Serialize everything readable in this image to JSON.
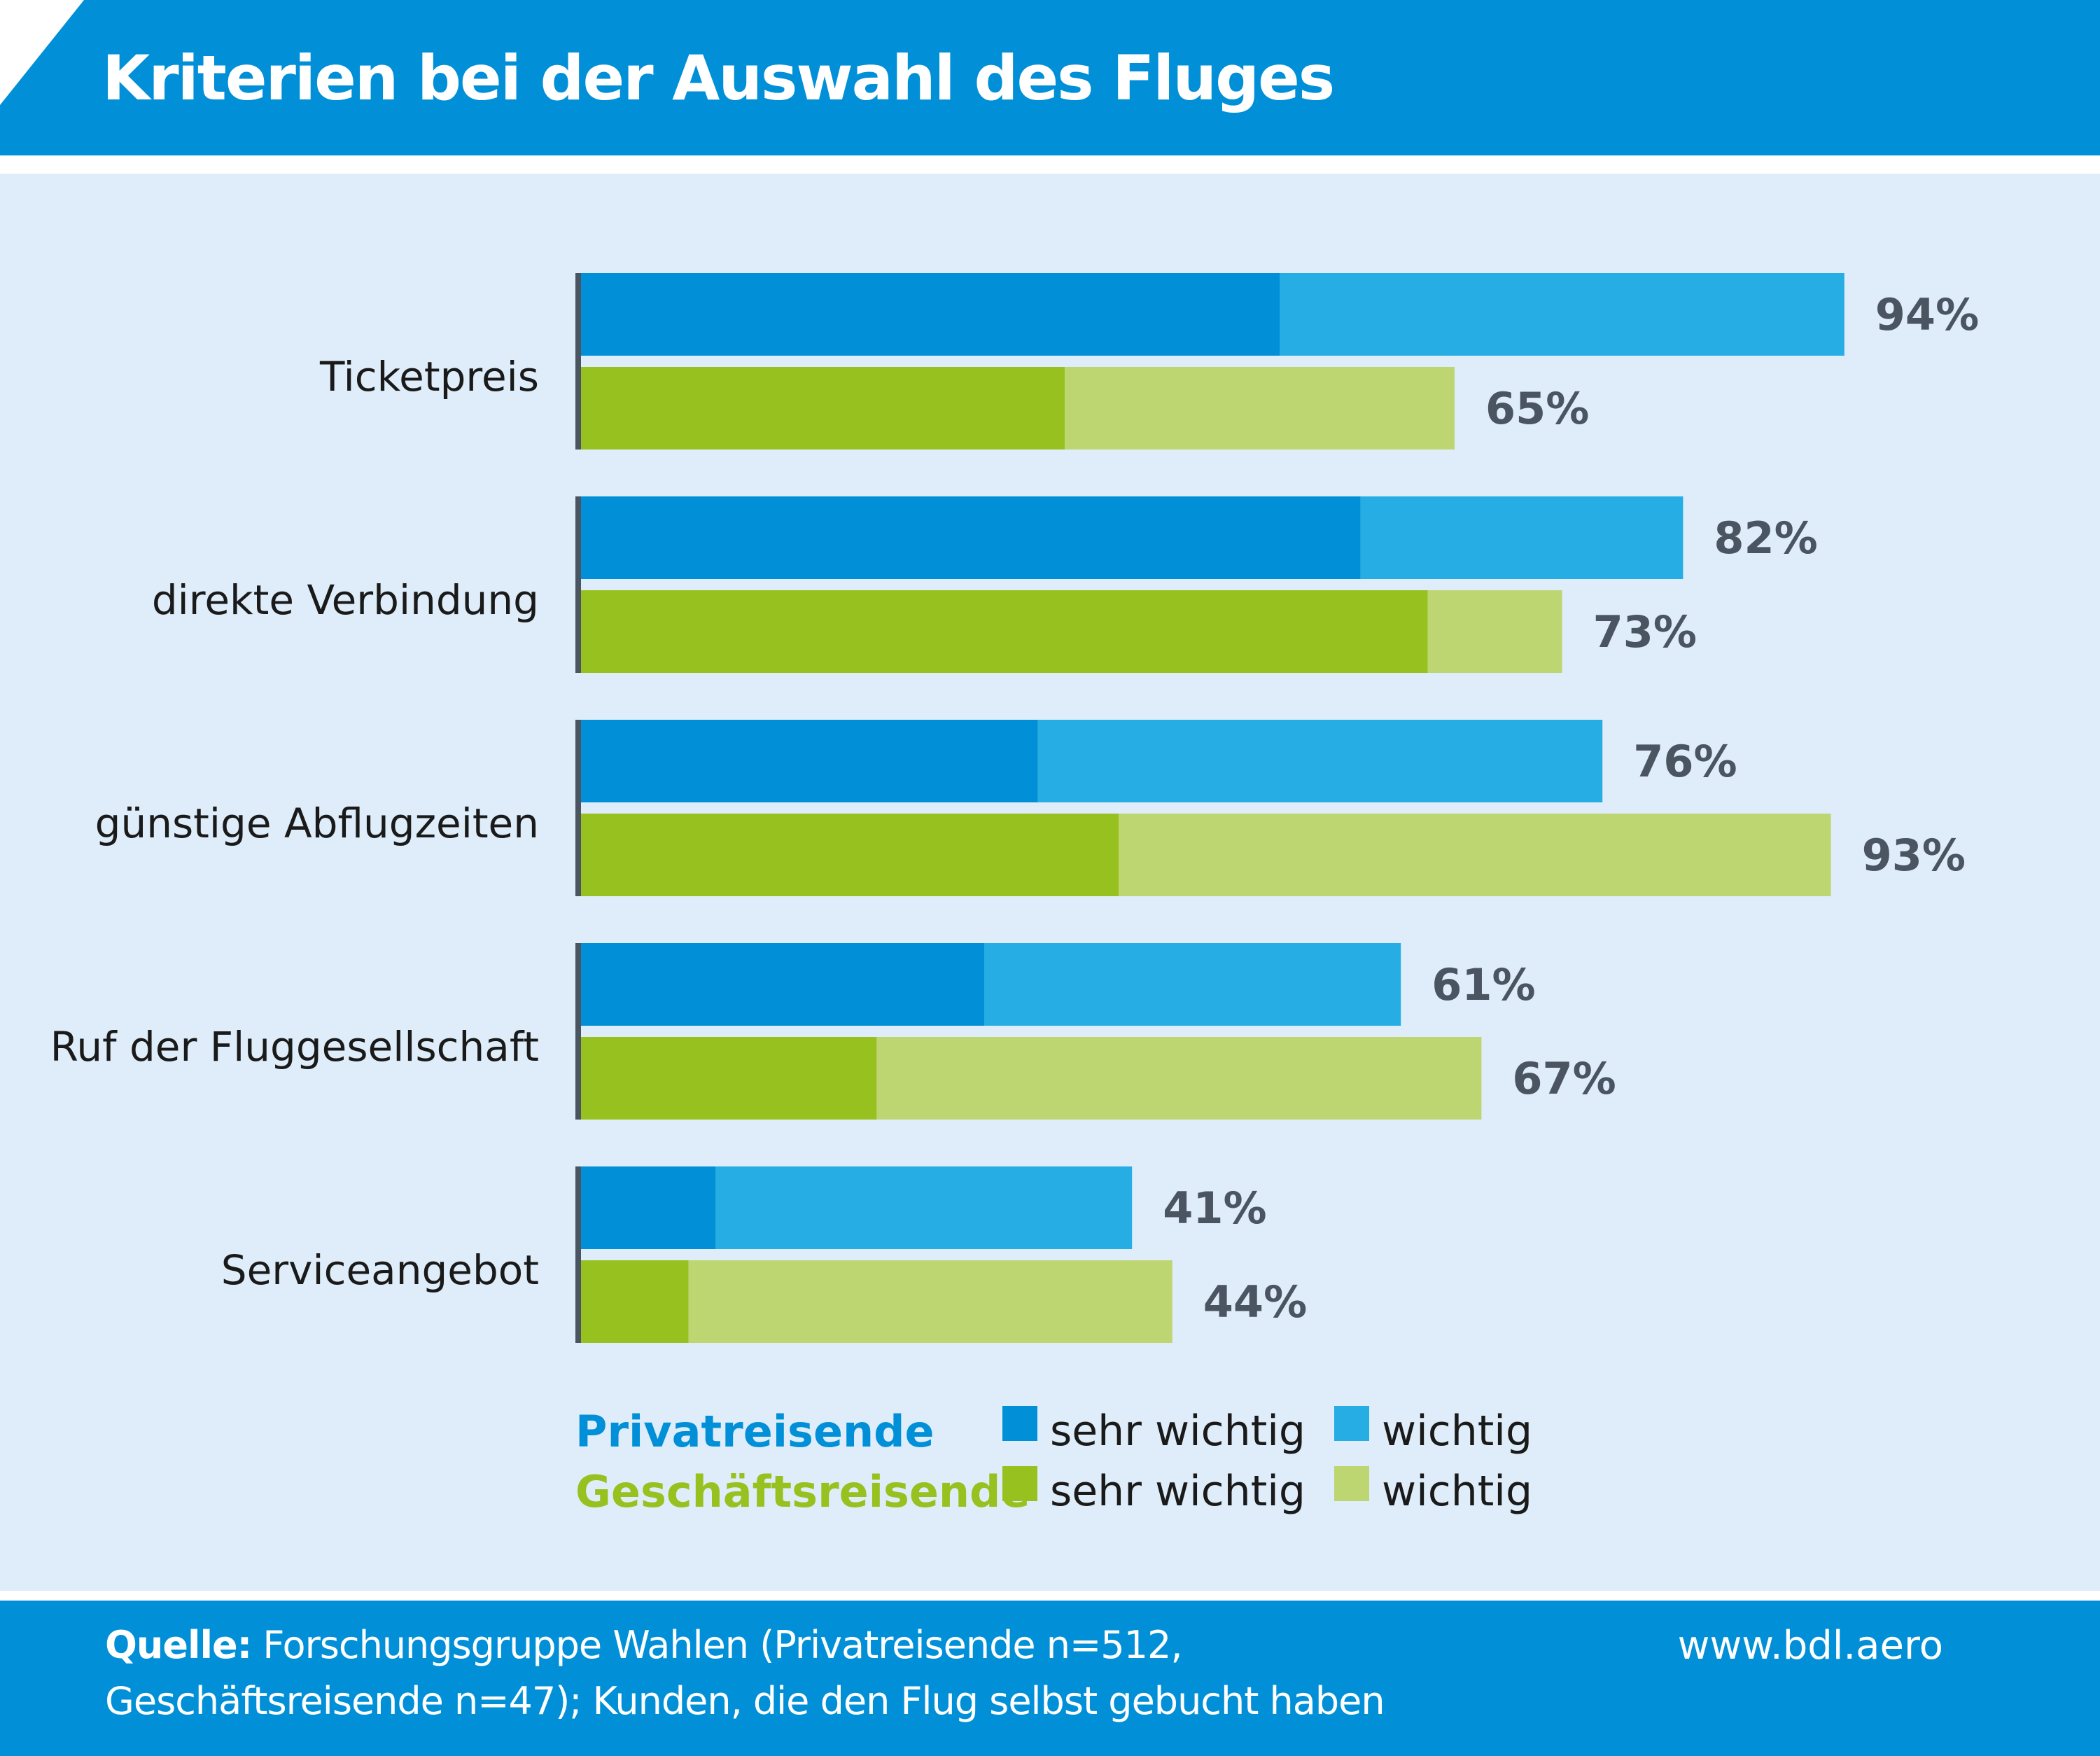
{
  "title": "Kriterien bei der Auswahl des Fluges",
  "footer": {
    "source_label": "Quelle:",
    "source_line1": "Forschungsgruppe Wahlen (Privatreisende n=512,",
    "source_line2": "Geschäftsreisende n=47); Kunden, die den Flug selbst gebucht haben",
    "website": "www.bdl.aero"
  },
  "colors": {
    "header": "#0190d8",
    "panel": "#deedf9",
    "private_very": "#0190d8",
    "private_important": "#25ade4",
    "business_very": "#97c11f",
    "business_important": "#bdd672",
    "axis": "#4b5561"
  },
  "chart_data": {
    "type": "bar",
    "orientation": "horizontal",
    "stacked": true,
    "categories": [
      "Ticketpreis",
      "direkte Verbindung",
      "günstige Abflugzeiten",
      "Ruf der Fluggesellschaft",
      "Serviceangebot"
    ],
    "groups": [
      {
        "name": "Privatreisende",
        "totals": [
          94,
          82,
          76,
          61,
          41
        ],
        "total_labels": [
          "94%",
          "82%",
          "76%",
          "61%",
          "41%"
        ],
        "series": [
          {
            "name": "sehr wichtig",
            "values": [
              52,
              58,
              34,
              30,
              10
            ]
          },
          {
            "name": "wichtig",
            "values": [
              42,
              24,
              42,
              31,
              31
            ]
          }
        ]
      },
      {
        "name": "Geschäftsreisende",
        "totals": [
          65,
          73,
          93,
          67,
          44
        ],
        "total_labels": [
          "65%",
          "73%",
          "93%",
          "67%",
          "44%"
        ],
        "series": [
          {
            "name": "sehr wichtig",
            "values": [
              36,
              63,
              40,
              22,
              8
            ]
          },
          {
            "name": "wichtig",
            "values": [
              29,
              10,
              53,
              45,
              36
            ]
          }
        ]
      }
    ],
    "xlim": [
      0,
      100
    ],
    "grid": false,
    "legend": "bottom"
  }
}
